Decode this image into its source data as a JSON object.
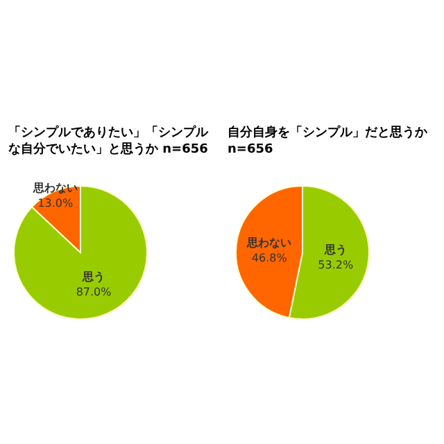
{
  "chart_data": [
    {
      "type": "pie",
      "title": "「シンプルでありたい」「シンプルな自分でいたい」と思うか n=656",
      "categories": [
        "思う",
        "思わない"
      ],
      "values": [
        87.0,
        13.0
      ],
      "colors": [
        "#99cc00",
        "#ff6600"
      ],
      "value_labels": [
        "87.0%",
        "13.0%"
      ]
    },
    {
      "type": "pie",
      "title": "自分自身を「シンプル」だと思うか n=656",
      "categories": [
        "思う",
        "思わない"
      ],
      "values": [
        53.2,
        46.8
      ],
      "colors": [
        "#99cc00",
        "#ff6600"
      ],
      "value_labels": [
        "53.2%",
        "46.8%"
      ]
    }
  ]
}
